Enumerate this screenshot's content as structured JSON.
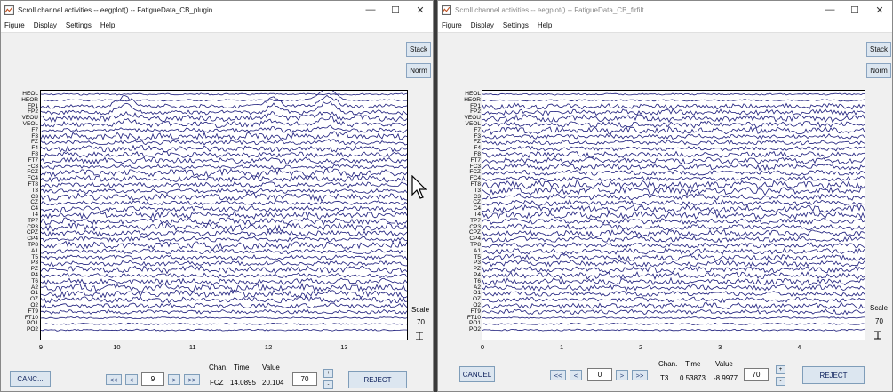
{
  "colors": {
    "trace": "#1a1a7a",
    "button_bg": "#dce6f0"
  },
  "left": {
    "title": "Scroll channel activities -- eegplot() -- FatigueData_CB_plugin",
    "menu": [
      "Figure",
      "Display",
      "Settings",
      "Help"
    ],
    "stack_label": "Stack",
    "norm_label": "Norm",
    "channels": [
      "HEOL",
      "HEOR",
      "FP1",
      "FP2",
      "VEOU",
      "VEOL",
      "F7",
      "F3",
      "FZ",
      "F4",
      "F8",
      "FT7",
      "FC3",
      "FCZ",
      "FC4",
      "FT8",
      "T3",
      "C3",
      "CZ",
      "C4",
      "T4",
      "TP7",
      "CP3",
      "CPZ",
      "CP4",
      "TP8",
      "A1",
      "T5",
      "P3",
      "PZ",
      "P4",
      "T6",
      "A2",
      "O1",
      "OZ",
      "O2",
      "FT9",
      "FT10",
      "PO1",
      "PO2"
    ],
    "xticks": [
      "9",
      "10",
      "11",
      "12",
      "13"
    ],
    "scale_label": "Scale",
    "scale_value": "70",
    "cancel_label": "CANC...",
    "nav_ll": "<<",
    "nav_l": "<",
    "nav_r": ">",
    "nav_rr": ">>",
    "page_value": "9",
    "col_chan": "Chan.",
    "col_time": "Time",
    "col_value": "Value",
    "chan_value": "FCZ",
    "time_value": "14.0895",
    "val_value": "20.104",
    "spacing_value": "70",
    "spin_up": "+",
    "spin_down": "-",
    "reject_label": "REJECT"
  },
  "right": {
    "title": "Scroll channel activities -- eegplot() -- FatigueData_CB_firfilt",
    "menu": [
      "Figure",
      "Display",
      "Settings",
      "Help"
    ],
    "stack_label": "Stack",
    "norm_label": "Norm",
    "channels": [
      "HEOL",
      "HEOR",
      "FP1",
      "FP2",
      "VEOU",
      "VEOL",
      "F7",
      "F3",
      "FZ",
      "F4",
      "F8",
      "FT7",
      "FC3",
      "FCZ",
      "FC4",
      "FT8",
      "T3",
      "C3",
      "CZ",
      "C4",
      "T4",
      "TP7",
      "CP3",
      "CPZ",
      "CP4",
      "TP8",
      "A1",
      "T5",
      "P3",
      "PZ",
      "P4",
      "T6",
      "A2",
      "O1",
      "OZ",
      "O2",
      "FT9",
      "FT10",
      "PO1",
      "PO2"
    ],
    "xticks": [
      "0",
      "1",
      "2",
      "3",
      "4"
    ],
    "scale_label": "Scale",
    "scale_value": "70",
    "cancel_label": "CANCEL",
    "nav_ll": "<<",
    "nav_l": "<",
    "nav_r": ">",
    "nav_rr": ">>",
    "page_value": "0",
    "col_chan": "Chan.",
    "col_time": "Time",
    "col_value": "Value",
    "chan_value": "T3",
    "time_value": "0.53873",
    "val_value": "-8.9977",
    "spacing_value": "70",
    "spin_up": "+",
    "spin_down": "-",
    "reject_label": "REJECT"
  }
}
